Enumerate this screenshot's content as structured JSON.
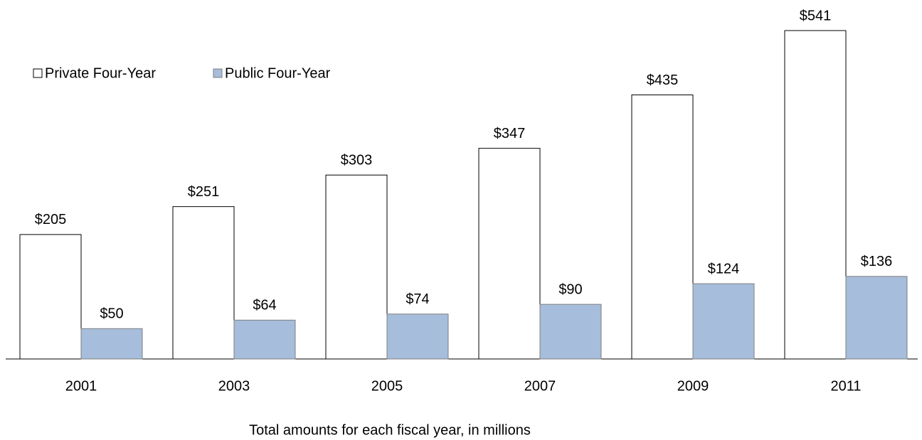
{
  "chart_data": {
    "type": "bar",
    "x_label": "Total amounts for each fiscal year, in millions",
    "categories": [
      "2001",
      "2003",
      "2005",
      "2007",
      "2009",
      "2011"
    ],
    "series": [
      {
        "name": "Private Four-Year",
        "color": "#ffffff",
        "values": [
          205,
          251,
          303,
          347,
          435,
          541
        ],
        "value_labels": [
          "$205",
          "$251",
          "$303",
          "$347",
          "$435",
          "$541"
        ]
      },
      {
        "name": "Public Four-Year",
        "color": "#a6bddb",
        "values": [
          50,
          64,
          74,
          90,
          124,
          136
        ],
        "value_labels": [
          "$50",
          "$64",
          "$74",
          "$90",
          "$124",
          "$136"
        ]
      }
    ],
    "legend": "top-left"
  }
}
